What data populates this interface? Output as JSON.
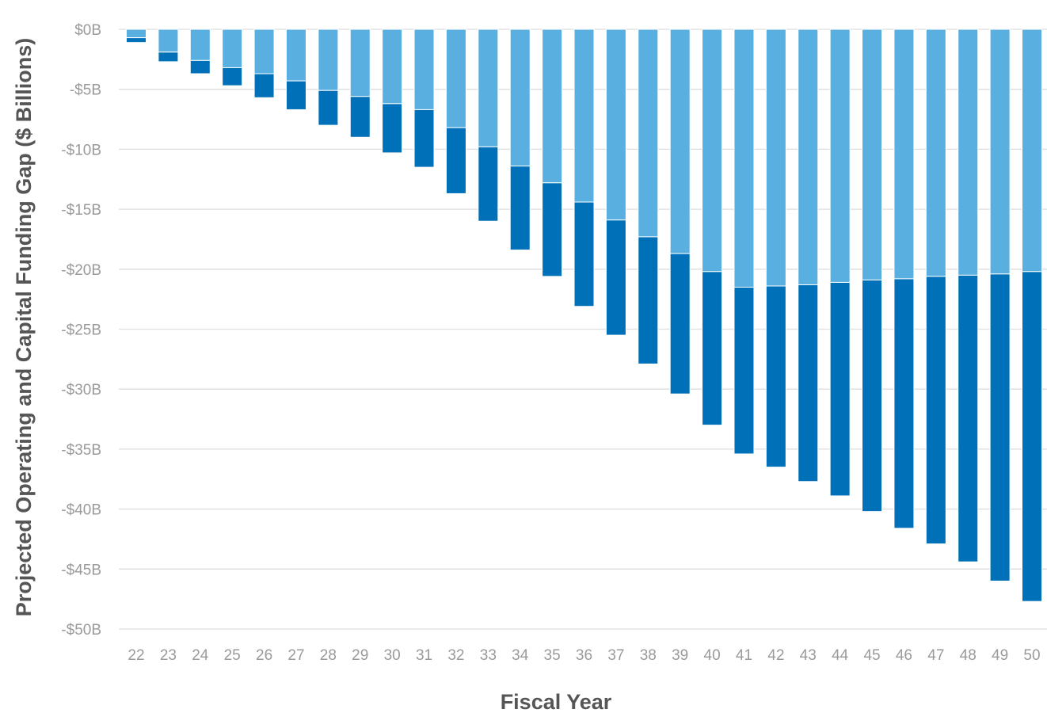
{
  "chart_data": {
    "type": "bar",
    "stacked": true,
    "xlabel": "Fiscal Year",
    "ylabel": "Projected Operating and Capital Funding Gap ($ Billions)",
    "ylim": [
      -50,
      0
    ],
    "yticks": [
      0,
      -5,
      -10,
      -15,
      -20,
      -25,
      -30,
      -35,
      -40,
      -45,
      -50
    ],
    "ytick_labels": [
      "$0B",
      "-$5B",
      "-$10B",
      "-$15B",
      "-$20B",
      "-$25B",
      "-$30B",
      "-$35B",
      "-$40B",
      "-$45B",
      "-$50B"
    ],
    "grid": true,
    "categories": [
      "22",
      "23",
      "24",
      "25",
      "26",
      "27",
      "28",
      "29",
      "30",
      "31",
      "32",
      "33",
      "34",
      "35",
      "36",
      "37",
      "38",
      "39",
      "40",
      "41",
      "42",
      "43",
      "44",
      "45",
      "46",
      "47",
      "48",
      "49",
      "50"
    ],
    "series": [
      {
        "color": "#5aafe1",
        "values": [
          -0.7,
          -1.9,
          -2.6,
          -3.2,
          -3.7,
          -4.3,
          -5.1,
          -5.6,
          -6.2,
          -6.7,
          -8.2,
          -9.8,
          -11.4,
          -12.8,
          -14.4,
          -15.9,
          -17.3,
          -18.7,
          -20.2,
          -21.5,
          -21.4,
          -21.3,
          -21.1,
          -20.9,
          -20.8,
          -20.6,
          -20.5,
          -20.4,
          -20.2
        ]
      },
      {
        "color": "#0071b8",
        "values": [
          -0.4,
          -0.8,
          -1.1,
          -1.5,
          -2.0,
          -2.4,
          -2.9,
          -3.4,
          -4.1,
          -4.8,
          -5.5,
          -6.2,
          -7.0,
          -7.8,
          -8.7,
          -9.6,
          -10.6,
          -11.7,
          -12.8,
          -13.9,
          -15.1,
          -16.4,
          -17.8,
          -19.3,
          -20.8,
          -22.3,
          -23.9,
          -25.6,
          -27.5
        ]
      }
    ]
  }
}
